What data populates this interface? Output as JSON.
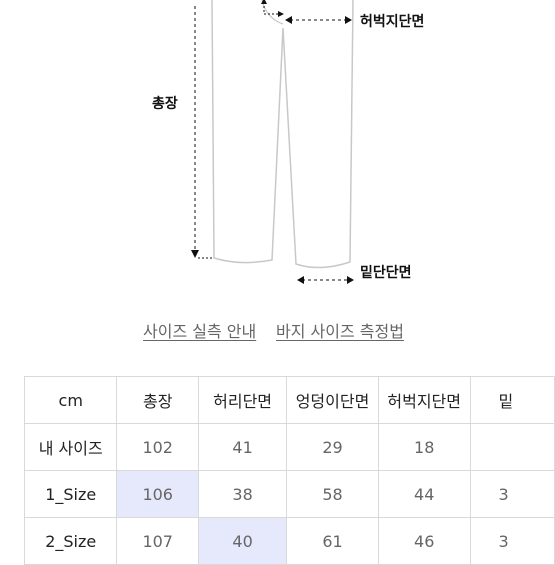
{
  "diagram": {
    "labels": {
      "total_length": "총장",
      "thigh_width": "허벅지단면",
      "hem_width": "밑단단면"
    }
  },
  "links": {
    "size_guide": "사이즈 실측 안내",
    "measure_guide": "바지 사이즈 측정법"
  },
  "table": {
    "headers": [
      "cm",
      "총장",
      "허리단면",
      "엉덩이단면",
      "허벅지단면",
      "밑"
    ],
    "rows": [
      {
        "name": "내 사이즈",
        "values": [
          "102",
          "41",
          "29",
          "18",
          ""
        ]
      },
      {
        "name": "1_Size",
        "values": [
          "106",
          "38",
          "58",
          "44",
          "3"
        ]
      },
      {
        "name": "2_Size",
        "values": [
          "107",
          "40",
          "61",
          "46",
          "3"
        ]
      }
    ]
  },
  "colors": {
    "highlight": "#e6e8fb",
    "border": "#d9d9d9"
  }
}
